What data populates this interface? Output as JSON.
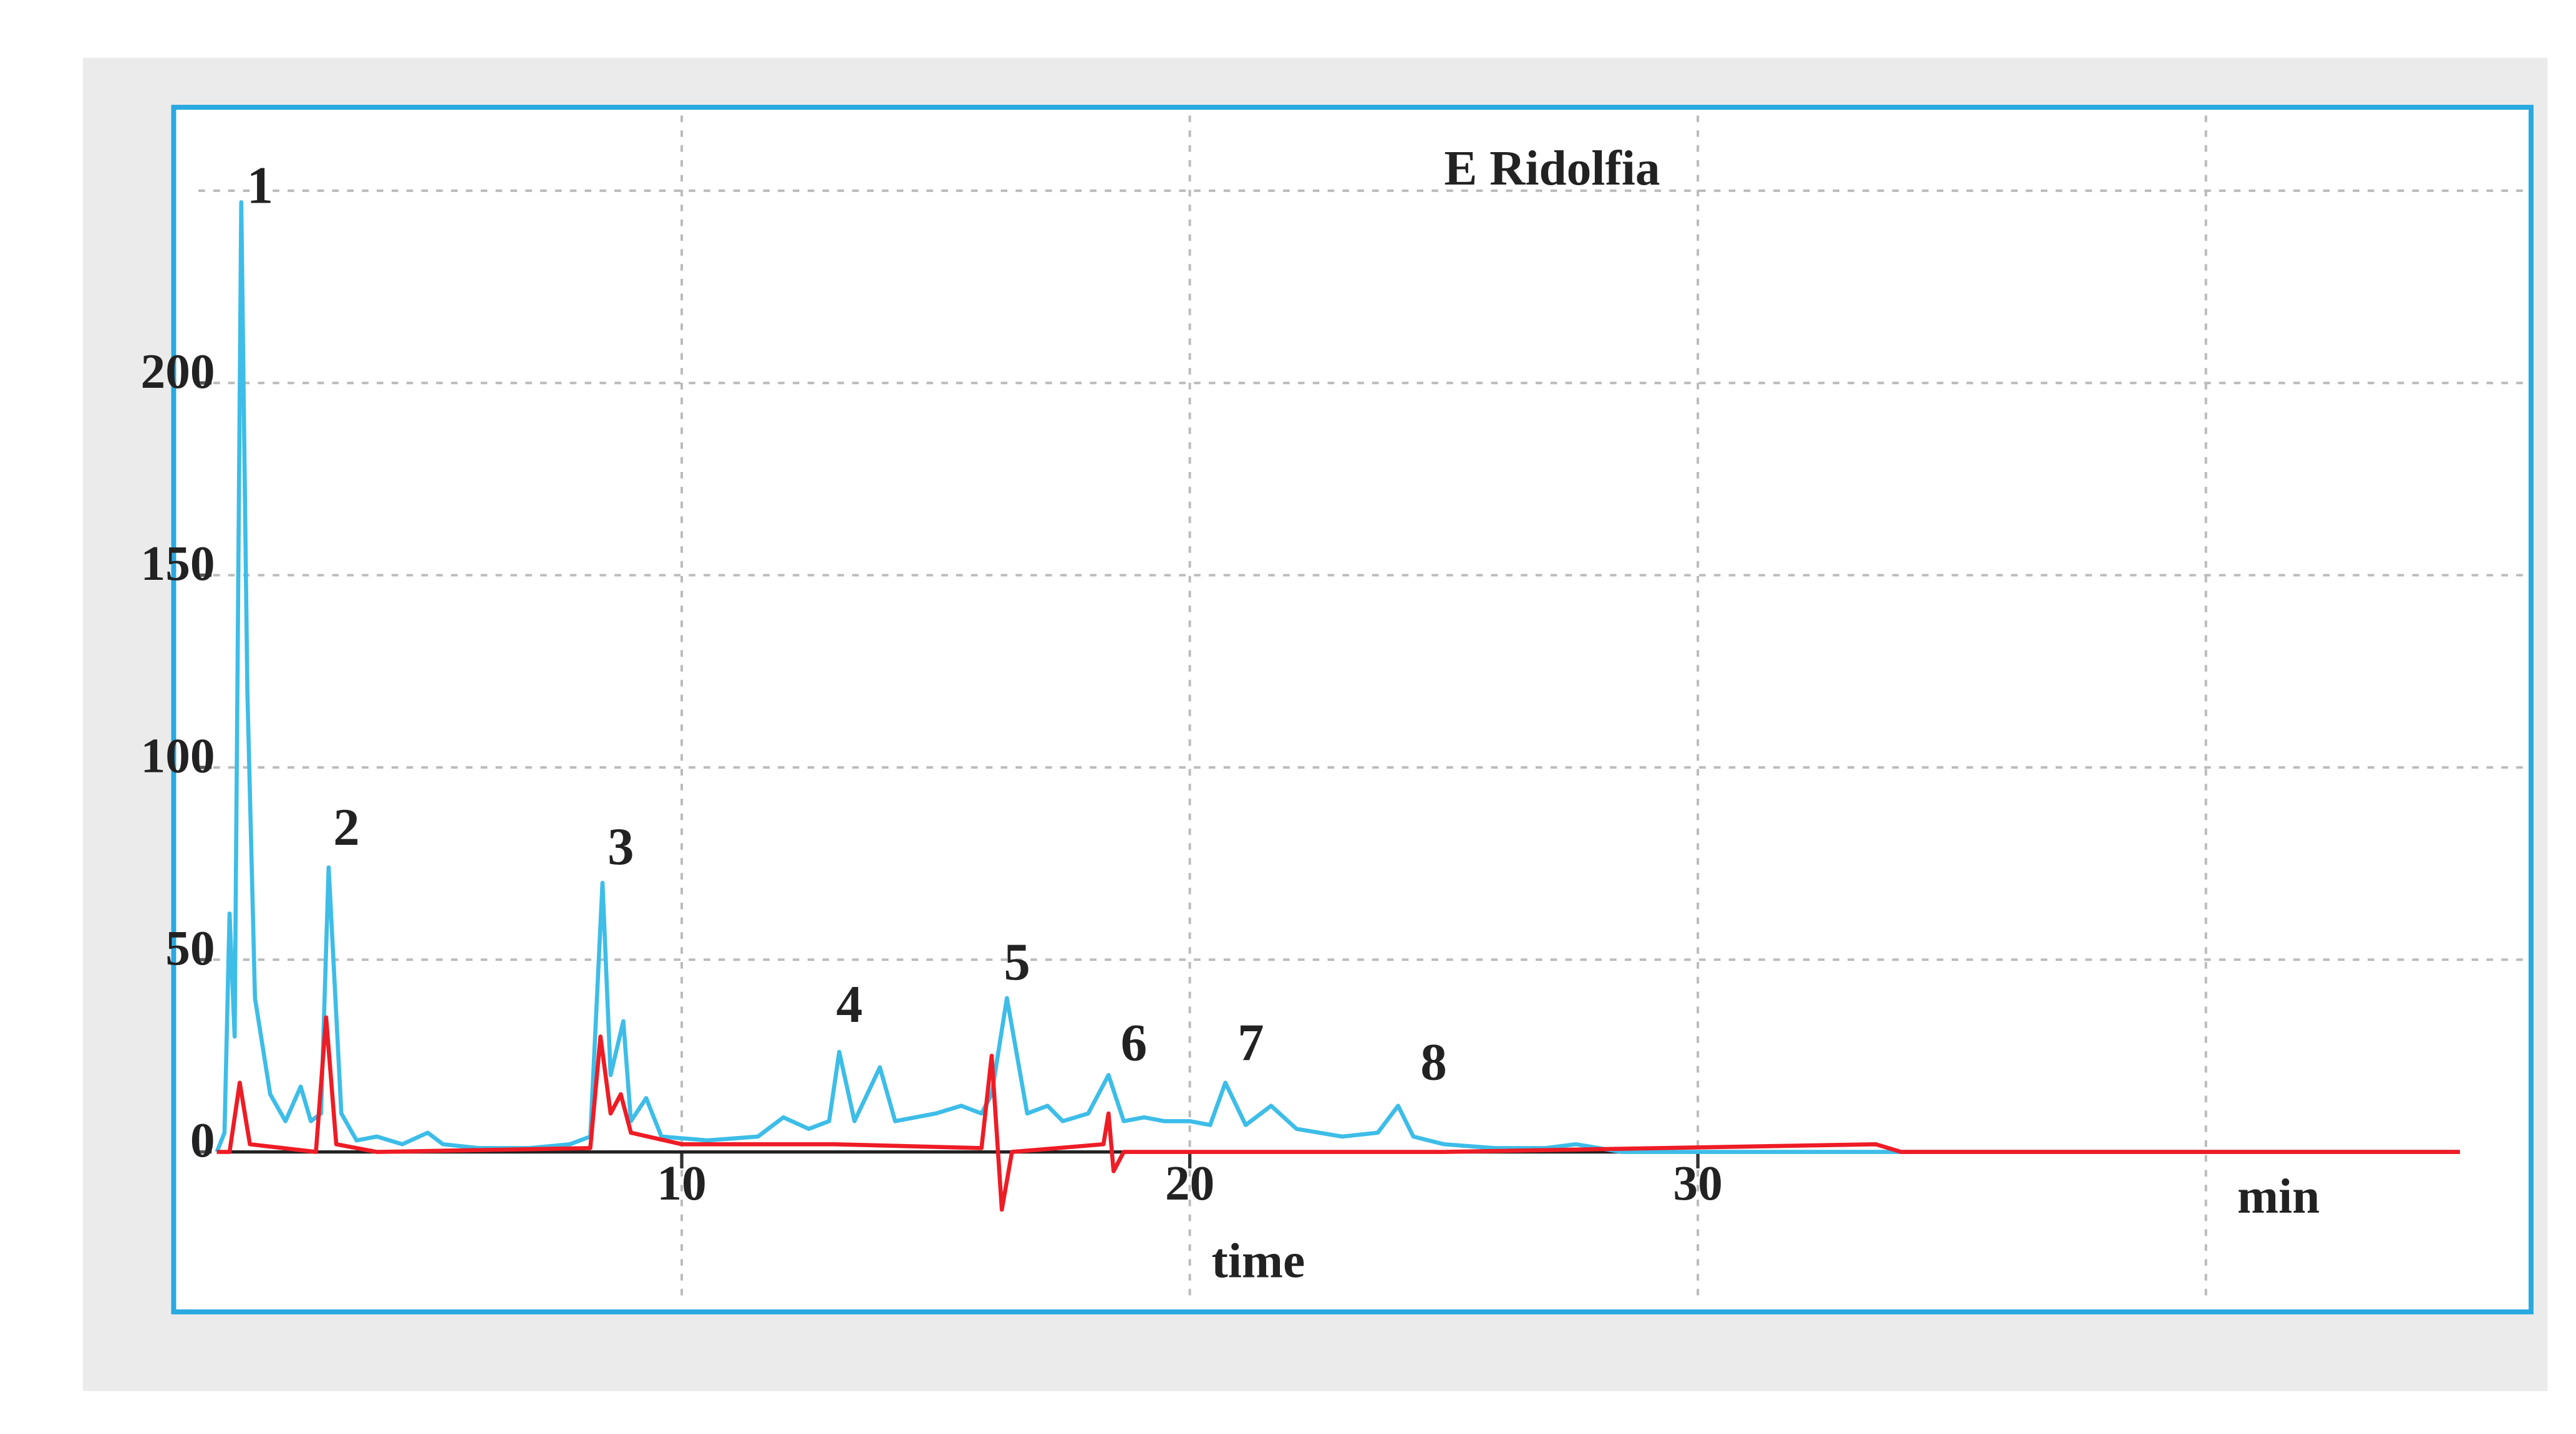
{
  "chart_data": {
    "type": "line",
    "title": "E Ridolfia",
    "x_label": "time",
    "x_unit": "min",
    "xlim": [
      0,
      46.4
    ],
    "ylim": [
      -41.6,
      271.7
    ],
    "xticks": [
      10,
      20,
      30
    ],
    "yticks": [
      0,
      50,
      100,
      150,
      200
    ],
    "x_grid_lines": [
      10,
      20,
      30,
      40
    ],
    "y_grid_lines": [
      50,
      100,
      150,
      200,
      250
    ],
    "grid": true,
    "series": [
      {
        "color": "#3dbde8",
        "x": [
          0.85,
          1.0,
          1.1,
          1.2,
          1.33,
          1.45,
          1.6,
          1.9,
          2.2,
          2.5,
          2.7,
          2.9,
          3.05,
          3.3,
          3.6,
          4.0,
          4.5,
          5.0,
          5.3,
          6,
          7,
          7.8,
          8.2,
          8.44,
          8.6,
          8.85,
          9.0,
          9.3,
          9.6,
          10.5,
          11.5,
          12,
          12.5,
          12.9,
          13.1,
          13.4,
          13.9,
          14.2,
          15,
          15.5,
          15.9,
          16.1,
          16.4,
          16.8,
          17.2,
          17.5,
          18.0,
          18.4,
          18.7,
          19.1,
          19.5,
          20,
          20.4,
          20.7,
          21.1,
          21.6,
          22.1,
          23,
          23.7,
          24.1,
          24.4,
          25,
          26,
          27,
          27.6,
          28.5,
          30,
          35,
          40,
          45
        ],
        "values": [
          0,
          5,
          62,
          30,
          247,
          120,
          40,
          15,
          8,
          17,
          8,
          10,
          74,
          10,
          3,
          4,
          2,
          5,
          2,
          1,
          1,
          2,
          4,
          70,
          20,
          34,
          8,
          14,
          4,
          3,
          4,
          9,
          6,
          8,
          26,
          8,
          22,
          8,
          10,
          12,
          10,
          15,
          40,
          10,
          12,
          8,
          10,
          20,
          8,
          9,
          8,
          8,
          7,
          18,
          7,
          12,
          6,
          4,
          5,
          12,
          4,
          2,
          1,
          1,
          2,
          0,
          0,
          0,
          0,
          0
        ]
      },
      {
        "color": "#ee1c25",
        "x": [
          0.85,
          1.1,
          1.3,
          1.5,
          2.8,
          3.0,
          3.2,
          4,
          8.2,
          8.4,
          8.6,
          8.8,
          9.0,
          10,
          13,
          15.9,
          16.1,
          16.3,
          16.5,
          18.3,
          18.4,
          18.5,
          18.7,
          25,
          33.5,
          34,
          45
        ],
        "values": [
          0,
          0,
          18,
          2,
          0,
          35,
          2,
          0,
          1,
          30,
          10,
          15,
          5,
          2,
          2,
          1,
          25,
          -15,
          0,
          2,
          10,
          -5,
          0,
          0,
          2,
          0,
          0
        ]
      }
    ],
    "annotations": [
      {
        "text": "1",
        "x": 1.7,
        "y": 250
      },
      {
        "text": "2",
        "x": 3.4,
        "y": 83
      },
      {
        "text": "3",
        "x": 8.8,
        "y": 78
      },
      {
        "text": "4",
        "x": 13.3,
        "y": 37
      },
      {
        "text": "5",
        "x": 16.6,
        "y": 48
      },
      {
        "text": "6",
        "x": 18.9,
        "y": 27
      },
      {
        "text": "7",
        "x": 21.2,
        "y": 27
      },
      {
        "text": "8",
        "x": 24.8,
        "y": 22
      }
    ]
  }
}
